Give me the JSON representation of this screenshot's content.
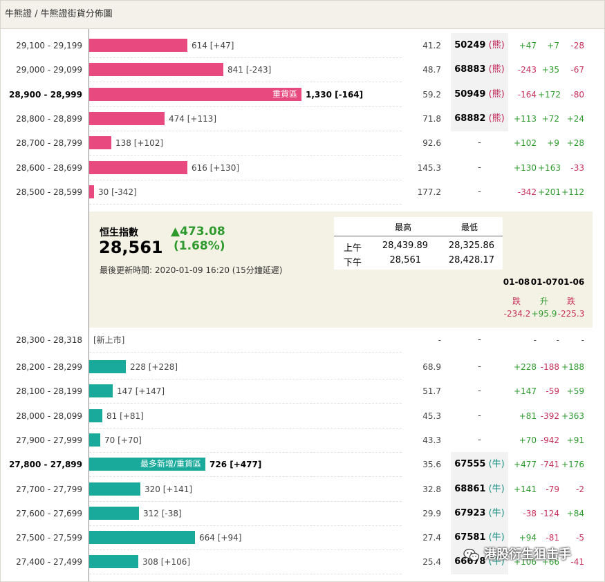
{
  "breadcrumb": "牛熊證 / 牛熊證街貨分佈圖",
  "colors": {
    "bear": "#e84a7f",
    "bull": "#1aaa9b",
    "up": "#2e9a2e",
    "down": "#c62f5a"
  },
  "scale_max": 1330,
  "bear_rows": [
    {
      "range": "29,100 - 29,199",
      "qty": 614,
      "label": "614 [+47]",
      "strike": "41.2",
      "code": "50249",
      "kind": "(熊)",
      "c1": "+47",
      "c2": "+7",
      "c3": "-28"
    },
    {
      "range": "29,000 - 29,099",
      "qty": 841,
      "label": "841 [-243]",
      "strike": "48.7",
      "code": "68883",
      "kind": "(熊)",
      "c1": "-243",
      "c2": "+35",
      "c3": "-67"
    },
    {
      "range": "28,900 - 28,999",
      "qty": 1330,
      "label": "1,330 [-164]",
      "inbar": "重貨區",
      "bold": true,
      "strike": "59.2",
      "code": "50949",
      "kind": "(熊)",
      "c1": "-164",
      "c2": "+172",
      "c3": "-80"
    },
    {
      "range": "28,800 - 28,899",
      "qty": 474,
      "label": "474 [+113]",
      "strike": "71.8",
      "code": "68882",
      "kind": "(熊)",
      "c1": "+113",
      "c2": "+72",
      "c3": "+24"
    },
    {
      "range": "28,700 - 28,799",
      "qty": 138,
      "label": "138 [+102]",
      "strike": "92.6",
      "code": "-",
      "kind": "",
      "c1": "+102",
      "c2": "+9",
      "c3": "+28"
    },
    {
      "range": "28,600 - 28,699",
      "qty": 616,
      "label": "616 [+130]",
      "strike": "145.3",
      "code": "-",
      "kind": "",
      "c1": "+130",
      "c2": "+163",
      "c3": "-33"
    },
    {
      "range": "28,500 - 28,599",
      "qty": 30,
      "label": "30 [-342]",
      "strike": "177.2",
      "code": "-",
      "kind": "",
      "c1": "-342",
      "c2": "+201",
      "c3": "+112"
    }
  ],
  "index": {
    "name": "恒生指數",
    "value": "28,561",
    "change": "▲473.08",
    "pct": "(1.68%)",
    "updated": "最後更新時間: 2020-01-09 16:20 (15分鐘延遲)",
    "hl_headers": [
      "最高",
      "最低"
    ],
    "hl_rows": [
      {
        "session": "上午",
        "high": "28,439.89",
        "low": "28,325.86"
      },
      {
        "session": "下午",
        "high": "28,561",
        "low": "28,428.17"
      }
    ],
    "days": [
      {
        "date": "01-08",
        "word": "跌",
        "value": "-234.2",
        "dir": "down"
      },
      {
        "date": "01-07",
        "word": "升",
        "value": "+95.9",
        "dir": "up"
      },
      {
        "date": "01-06",
        "word": "跌",
        "value": "-225.3",
        "dir": "down"
      }
    ]
  },
  "new_row": {
    "range": "28,300 - 28,318",
    "label": "[新上市]",
    "strike": "-",
    "code": "-",
    "c1": "-",
    "c2": "-",
    "c3": "-"
  },
  "bull_rows": [
    {
      "range": "28,200 - 28,299",
      "qty": 228,
      "label": "228 [+228]",
      "strike": "68.9",
      "code": "-",
      "kind": "",
      "c1": "+228",
      "c2": "-188",
      "c3": "+188"
    },
    {
      "range": "28,100 - 28,199",
      "qty": 147,
      "label": "147 [+147]",
      "strike": "51.7",
      "code": "-",
      "kind": "",
      "c1": "+147",
      "c2": "-59",
      "c3": "+59"
    },
    {
      "range": "28,000 - 28,099",
      "qty": 81,
      "label": "81 [+81]",
      "strike": "45.3",
      "code": "-",
      "kind": "",
      "c1": "+81",
      "c2": "-392",
      "c3": "+363"
    },
    {
      "range": "27,900 - 27,999",
      "qty": 70,
      "label": "70 [+70]",
      "strike": "43.3",
      "code": "-",
      "kind": "",
      "c1": "+70",
      "c2": "-942",
      "c3": "+91"
    },
    {
      "range": "27,800 - 27,899",
      "qty": 726,
      "label": "726 [+477]",
      "inbar": "最多新增/重貨區",
      "bold": true,
      "strike": "35.6",
      "code": "67555",
      "kind": "(牛)",
      "c1": "+477",
      "c2": "-741",
      "c3": "+176"
    },
    {
      "range": "27,700 - 27,799",
      "qty": 320,
      "label": "320 [+141]",
      "strike": "32.8",
      "code": "68861",
      "kind": "(牛)",
      "c1": "+141",
      "c2": "-79",
      "c3": "-2"
    },
    {
      "range": "27,600 - 27,699",
      "qty": 312,
      "label": "312 [-38]",
      "strike": "29.9",
      "code": "67923",
      "kind": "(牛)",
      "c1": "-38",
      "c2": "-124",
      "c3": "+84"
    },
    {
      "range": "27,500 - 27,599",
      "qty": 664,
      "label": "664 [+94]",
      "strike": "27.4",
      "code": "67581",
      "kind": "(牛)",
      "c1": "+94",
      "c2": "-81",
      "c3": "-5"
    },
    {
      "range": "27,400 - 27,499",
      "qty": 308,
      "label": "308 [+106]",
      "strike": "25.4",
      "code": "66678",
      "kind": "(牛)",
      "c1": "+106",
      "c2": "+66",
      "c3": "-41"
    }
  ],
  "watermark": "港股衍生狙击手"
}
